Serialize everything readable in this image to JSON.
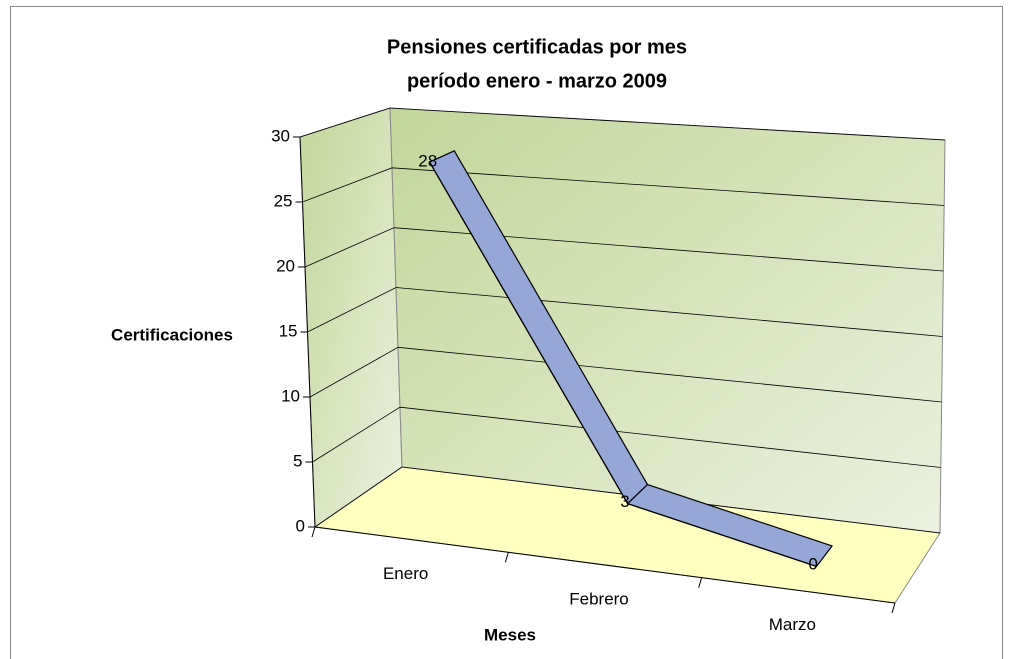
{
  "chart_data": {
    "type": "line3d",
    "title": [
      "Pensiones certificadas por mes",
      "período enero - marzo 2009"
    ],
    "x_label": "Meses",
    "y_label": "Certificaciones",
    "categories": [
      "Enero",
      "Febrero",
      "Marzo"
    ],
    "values": [
      28,
      3,
      0
    ],
    "color": "#95a7d6",
    "ylim": [
      0,
      30
    ],
    "yticks": [
      0,
      5,
      10,
      15,
      20,
      25,
      30
    ],
    "grid": true
  }
}
